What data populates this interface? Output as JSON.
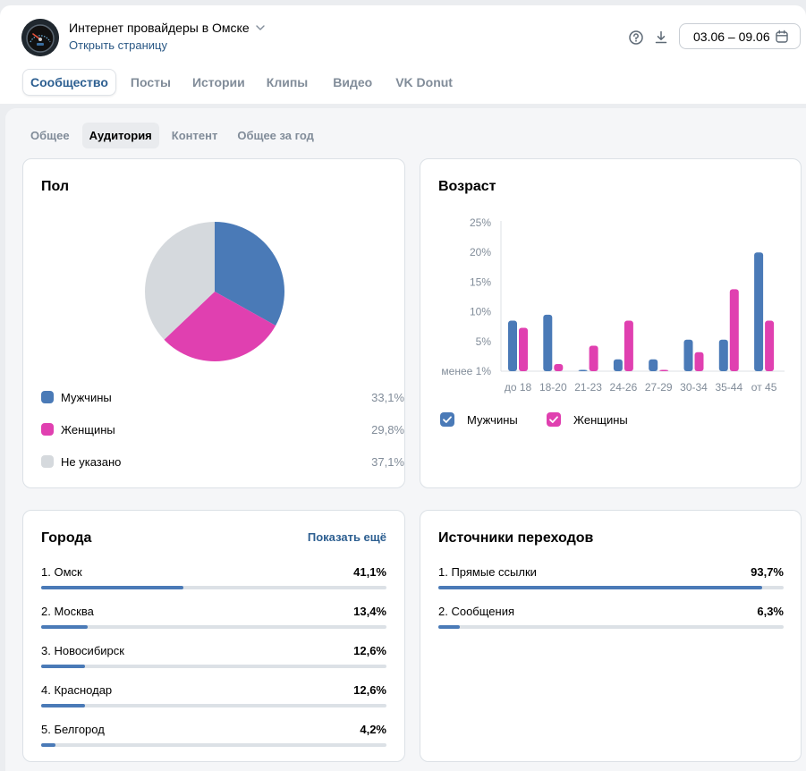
{
  "header": {
    "title": "Интернет провайдеры в Омске",
    "open_page": "Открыть страницу",
    "date_range": "03.06 – 09.06"
  },
  "tabs": [
    {
      "label": "Сообщество",
      "active": true
    },
    {
      "label": "Посты"
    },
    {
      "label": "Истории"
    },
    {
      "label": "Клипы"
    },
    {
      "label": "Видео"
    },
    {
      "label": "VK Donut"
    }
  ],
  "subtabs": [
    {
      "label": "Общее"
    },
    {
      "label": "Аудитория",
      "active": true
    },
    {
      "label": "Контент"
    },
    {
      "label": "Общее за год"
    }
  ],
  "gender": {
    "title": "Пол",
    "items": [
      {
        "label": "Мужчины",
        "value": "33,1%",
        "color": "#4a7ab7"
      },
      {
        "label": "Женщины",
        "value": "29,8%",
        "color": "#e040b0"
      },
      {
        "label": "Не указано",
        "value": "37,1%",
        "color": "#d5d9dd"
      }
    ]
  },
  "age": {
    "title": "Возраст",
    "legend_men": "Мужчины",
    "legend_women": "Женщины"
  },
  "cities": {
    "title": "Города",
    "show_more": "Показать ещё",
    "items": [
      {
        "label": "1. Омск",
        "value": "41,1%",
        "pct": 41.1
      },
      {
        "label": "2. Москва",
        "value": "13,4%",
        "pct": 13.4
      },
      {
        "label": "3. Новосибирск",
        "value": "12,6%",
        "pct": 12.6
      },
      {
        "label": "4. Краснодар",
        "value": "12,6%",
        "pct": 12.6
      },
      {
        "label": "5. Белгород",
        "value": "4,2%",
        "pct": 4.2
      }
    ]
  },
  "sources": {
    "title": "Источники переходов",
    "items": [
      {
        "label": "1. Прямые ссылки",
        "value": "93,7%",
        "pct": 93.7
      },
      {
        "label": "2. Сообщения",
        "value": "6,3%",
        "pct": 6.3
      }
    ]
  },
  "chart_data": [
    {
      "type": "pie",
      "title": "Пол",
      "categories": [
        "Мужчины",
        "Женщины",
        "Не указано"
      ],
      "values": [
        33.1,
        29.8,
        37.1
      ],
      "colors": [
        "#4a7ab7",
        "#e040b0",
        "#d5d9dd"
      ]
    },
    {
      "type": "bar",
      "title": "Возраст",
      "categories": [
        "до 18",
        "18-20",
        "21-23",
        "24-26",
        "27-29",
        "30-34",
        "35-44",
        "от 45"
      ],
      "y_tick_labels": [
        "менее 1%",
        "5%",
        "10%",
        "15%",
        "20%",
        "25%"
      ],
      "ylim": [
        0,
        25
      ],
      "series": [
        {
          "name": "Мужчины",
          "color": "#4a7ab7",
          "values": [
            8.5,
            9.5,
            0.2,
            2,
            2,
            5.3,
            5.3,
            20
          ]
        },
        {
          "name": "Женщины",
          "color": "#e040b0",
          "values": [
            7.3,
            1.2,
            4.3,
            8.5,
            0.2,
            3.2,
            13.8,
            8.5
          ]
        }
      ],
      "grid": false,
      "legend": "bottom-left"
    }
  ]
}
